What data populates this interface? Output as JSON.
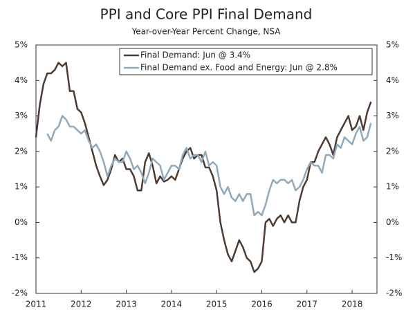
{
  "chart_data": {
    "type": "line",
    "title": "PPI and Core PPI Final Demand",
    "subtitle": "Year-over-Year Percent Change, NSA",
    "x": [
      2011,
      2011.083,
      2011.167,
      2011.25,
      2011.333,
      2011.417,
      2011.5,
      2011.583,
      2011.667,
      2011.75,
      2011.833,
      2011.917,
      2012,
      2012.083,
      2012.167,
      2012.25,
      2012.333,
      2012.417,
      2012.5,
      2012.583,
      2012.667,
      2012.75,
      2012.833,
      2012.917,
      2013,
      2013.083,
      2013.167,
      2013.25,
      2013.333,
      2013.417,
      2013.5,
      2013.583,
      2013.667,
      2013.75,
      2013.833,
      2013.917,
      2014,
      2014.083,
      2014.167,
      2014.25,
      2014.333,
      2014.417,
      2014.5,
      2014.583,
      2014.667,
      2014.75,
      2014.833,
      2014.917,
      2015,
      2015.083,
      2015.167,
      2015.25,
      2015.333,
      2015.417,
      2015.5,
      2015.583,
      2015.667,
      2015.75,
      2015.833,
      2015.917,
      2016,
      2016.083,
      2016.167,
      2016.25,
      2016.333,
      2016.417,
      2016.5,
      2016.583,
      2016.667,
      2016.75,
      2016.833,
      2016.917,
      2017,
      2017.083,
      2017.167,
      2017.25,
      2017.333,
      2017.417,
      2017.5,
      2017.583,
      2017.667,
      2017.75,
      2017.833,
      2017.917,
      2018,
      2018.083,
      2018.167,
      2018.25,
      2018.333,
      2018.417
    ],
    "series": [
      {
        "name": "Final Demand: Jun @ 3.4%",
        "color": "#4d3b31",
        "values": [
          2.4,
          3.3,
          3.9,
          4.2,
          4.2,
          4.3,
          4.5,
          4.4,
          4.5,
          3.7,
          3.7,
          3.2,
          3.1,
          2.8,
          2.4,
          2.0,
          1.6,
          1.3,
          1.05,
          1.2,
          1.5,
          1.9,
          1.7,
          1.8,
          1.5,
          1.5,
          1.3,
          0.9,
          0.9,
          1.7,
          1.95,
          1.6,
          1.1,
          1.3,
          1.15,
          1.2,
          1.3,
          1.2,
          1.5,
          1.8,
          2.0,
          2.1,
          1.8,
          1.9,
          1.9,
          1.55,
          1.55,
          1.3,
          0.9,
          0.0,
          -0.5,
          -0.9,
          -1.1,
          -0.8,
          -0.5,
          -0.7,
          -1.0,
          -1.1,
          -1.4,
          -1.3,
          -1.1,
          0.0,
          0.1,
          -0.1,
          0.1,
          0.2,
          0.0,
          0.2,
          0.0,
          0.0,
          0.6,
          1.0,
          1.2,
          1.7,
          1.7,
          2.0,
          2.2,
          2.4,
          2.2,
          1.9,
          2.4,
          2.6,
          2.8,
          3.0,
          2.6,
          2.7,
          3.0,
          2.6,
          3.1,
          3.4
        ]
      },
      {
        "name": "Final Demand ex. Food and Energy: Jun @ 2.8%",
        "color": "#8fa9bd",
        "values": [
          null,
          null,
          null,
          2.5,
          2.3,
          2.6,
          2.7,
          3.0,
          2.9,
          2.7,
          2.7,
          2.6,
          2.5,
          2.6,
          2.3,
          2.1,
          2.2,
          2.0,
          1.7,
          1.3,
          1.6,
          1.8,
          1.7,
          1.7,
          2.0,
          1.8,
          1.5,
          1.6,
          1.4,
          1.1,
          1.4,
          1.8,
          1.7,
          1.6,
          1.2,
          1.4,
          1.6,
          1.6,
          1.5,
          1.9,
          2.1,
          1.8,
          1.9,
          1.9,
          1.7,
          2.0,
          1.6,
          1.7,
          1.6,
          1.0,
          0.8,
          1.0,
          0.7,
          0.6,
          0.8,
          0.6,
          0.8,
          0.8,
          0.2,
          0.3,
          0.2,
          0.5,
          0.9,
          1.2,
          1.1,
          1.2,
          1.2,
          1.1,
          1.2,
          0.9,
          1.0,
          1.2,
          1.5,
          1.7,
          1.6,
          1.6,
          1.4,
          1.9,
          1.9,
          1.8,
          2.2,
          2.1,
          2.4,
          2.3,
          2.2,
          2.5,
          2.7,
          2.3,
          2.4,
          2.8
        ]
      }
    ],
    "xlim": [
      2011,
      2018.55
    ],
    "xticks": [
      2011,
      2012,
      2013,
      2014,
      2015,
      2016,
      2017,
      2018
    ],
    "ylim": [
      -2,
      5
    ],
    "yticks": [
      {
        "value": 5,
        "label": "5%"
      },
      {
        "value": 4,
        "label": "4%"
      },
      {
        "value": 3,
        "label": "3%"
      },
      {
        "value": 2,
        "label": "2%"
      },
      {
        "value": 1,
        "label": "1%"
      },
      {
        "value": 0,
        "label": "0%"
      },
      {
        "value": -1,
        "label": "-1%"
      },
      {
        "value": -2,
        "label": "-2%"
      }
    ],
    "y2lim": [
      -2,
      5
    ],
    "y2ticks": [
      {
        "value": 5,
        "label": "5%"
      },
      {
        "value": 4,
        "label": "4%"
      },
      {
        "value": 3,
        "label": "3%"
      },
      {
        "value": 2,
        "label": "2%"
      },
      {
        "value": 1,
        "label": "1%"
      },
      {
        "value": 0,
        "label": "0%"
      },
      {
        "value": -1,
        "label": "-1%"
      },
      {
        "value": -2,
        "label": "-2%"
      }
    ],
    "legend": "top-right"
  }
}
